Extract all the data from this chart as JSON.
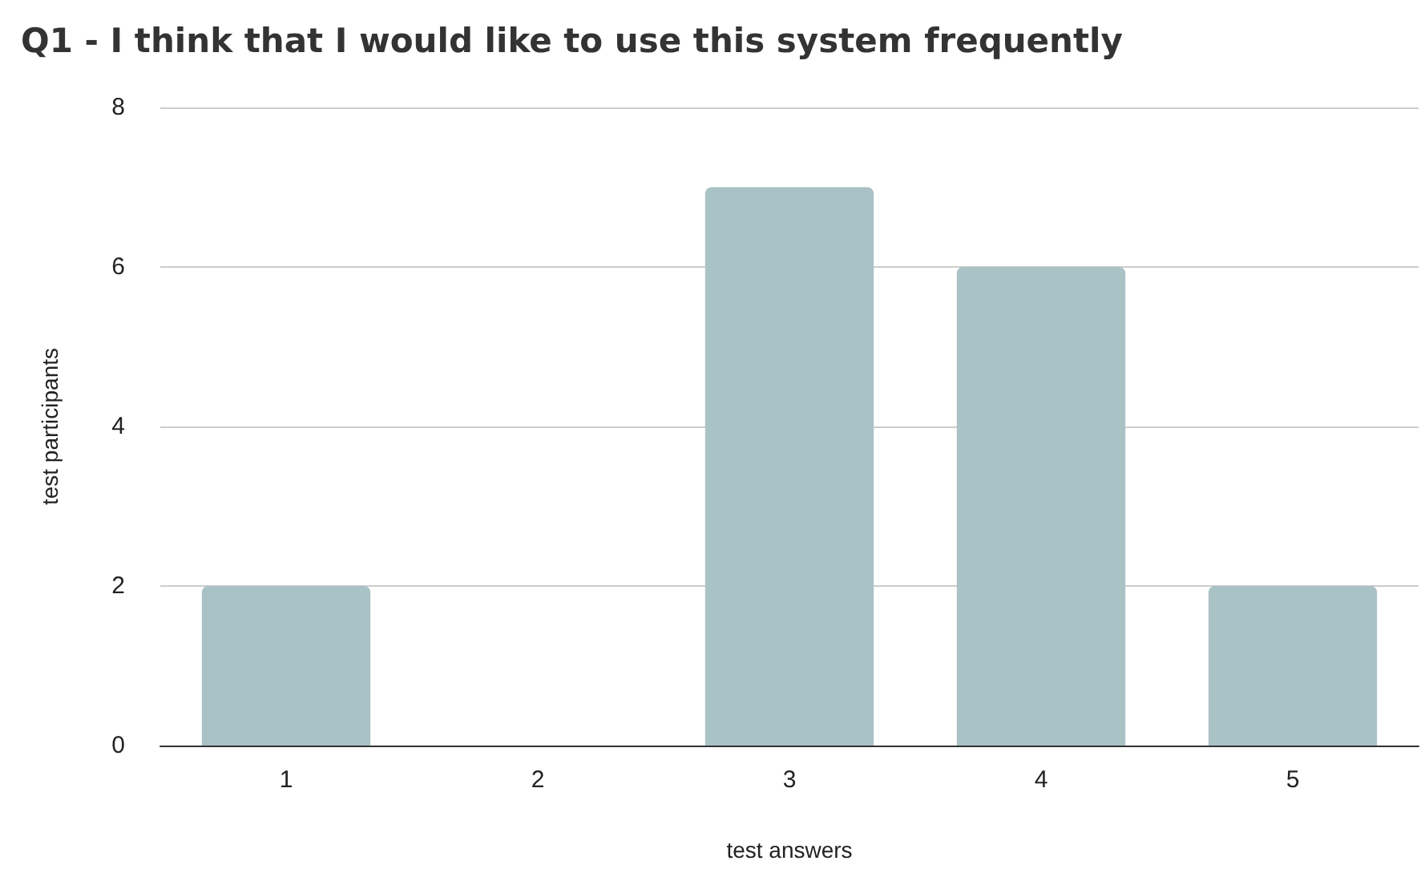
{
  "chart_data": {
    "type": "bar",
    "title": "Q1 - I think that I would like to use this system frequently",
    "xlabel": "test answers",
    "ylabel": "test participants",
    "categories": [
      "1",
      "2",
      "3",
      "4",
      "5"
    ],
    "values": [
      2,
      0,
      7,
      6,
      2
    ],
    "color": "#a9c2c6",
    "ylim": [
      0,
      8
    ],
    "yticks": [
      0,
      2,
      4,
      6,
      8
    ],
    "grid": "y"
  }
}
